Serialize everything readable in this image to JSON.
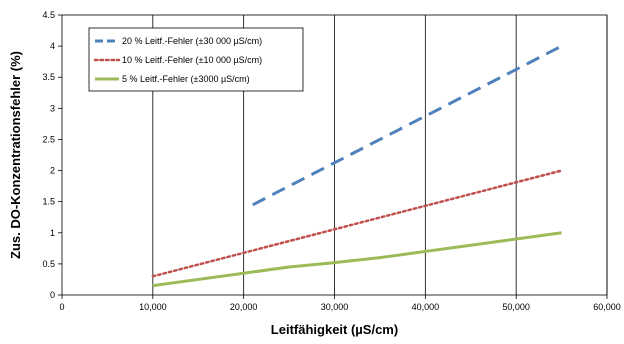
{
  "chart_data": {
    "type": "line",
    "xlabel": "Leitfähigkeit (µS/cm)",
    "ylabel": "Zus. DO-Konzentrationsfehler (%)",
    "xlim": [
      0,
      60000
    ],
    "ylim": [
      0,
      4.5
    ],
    "x_ticks": [
      0,
      10000,
      20000,
      30000,
      40000,
      50000,
      60000
    ],
    "x_tick_labels": [
      "0",
      "10,000",
      "20,000",
      "30,000",
      "40,000",
      "50,000",
      "60,000"
    ],
    "y_ticks": [
      0,
      0.5,
      1,
      1.5,
      2,
      2.5,
      3,
      3.5,
      4,
      4.5
    ],
    "y_tick_labels": [
      "0",
      "0.5",
      "1",
      "1.5",
      "2",
      "2.5",
      "3",
      "3.5",
      "4",
      "4.5"
    ],
    "grid": {
      "vertical": true,
      "horizontal": false
    },
    "legend_position": "top-left",
    "series": [
      {
        "name": "20 % Leitf.-Fehler (±30 000 µS/cm)",
        "style": "dashed",
        "color": "#4F81BD",
        "x": [
          21000,
          55000
        ],
        "y": [
          1.45,
          4.0
        ]
      },
      {
        "name": "10 % Leitf.-Fehler (±10 000 µS/cm)",
        "style": "dotted",
        "color": "#C0504D",
        "x": [
          10000,
          55000
        ],
        "y": [
          0.3,
          2.0
        ]
      },
      {
        "name": "5 % Leitf.-Fehler (±3000 µS/cm)",
        "style": "solid",
        "color": "#9BBB59",
        "x": [
          10000,
          15000,
          20000,
          25000,
          30000,
          35000,
          40000,
          45000,
          50000,
          55000
        ],
        "y": [
          0.15,
          0.25,
          0.35,
          0.45,
          0.52,
          0.6,
          0.7,
          0.8,
          0.9,
          1.0
        ]
      }
    ]
  }
}
